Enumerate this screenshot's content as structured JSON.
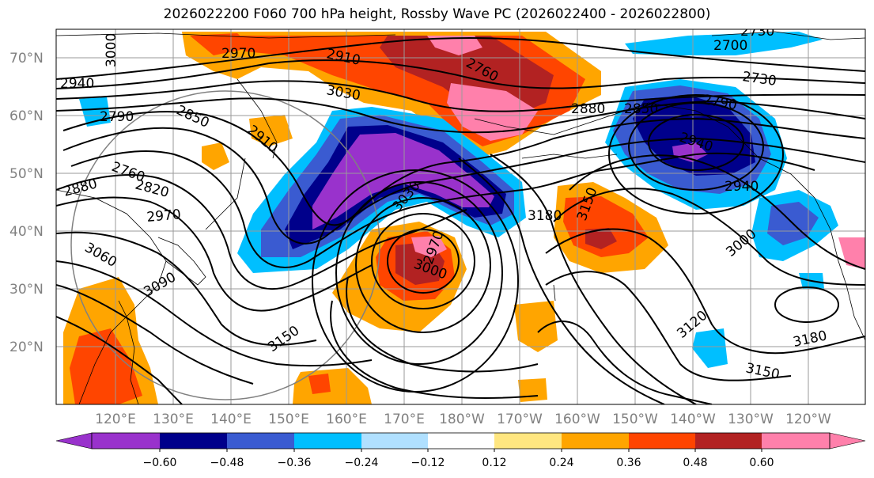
{
  "title": "2026022200 F060 700 hPa height, Rossby Wave PC (2026022400 - 2026022800)",
  "lat_labels": [
    "70°N",
    "60°N",
    "50°N",
    "40°N",
    "30°N",
    "20°N"
  ],
  "lat_values": [
    70,
    60,
    50,
    40,
    30,
    20
  ],
  "lon_labels": [
    "120°E",
    "130°E",
    "140°E",
    "150°E",
    "160°E",
    "170°E",
    "180°W",
    "170°W",
    "160°W",
    "150°W",
    "140°W",
    "130°W",
    "120°W"
  ],
  "contour_labels": [
    "3000",
    "2970",
    "2910",
    "2760",
    "2730",
    "2700",
    "2940",
    "3030",
    "2880",
    "2850",
    "2790",
    "2790",
    "2850",
    "2940",
    "2760",
    "2820",
    "2880",
    "2970",
    "3030",
    "2970",
    "3000",
    "3180",
    "3150",
    "2940",
    "3060",
    "3090",
    "3000",
    "3150",
    "3120",
    "3180",
    "3150",
    "2910",
    "2730"
  ],
  "colorbar": {
    "ticks": [
      "−0.60",
      "−0.48",
      "−0.36",
      "−0.24",
      "−0.12",
      "0.12",
      "0.24",
      "0.36",
      "0.48",
      "0.60"
    ],
    "colors": [
      "#9932cc",
      "#00008b",
      "#3a5bd1",
      "#00bfff",
      "#b0e0ff",
      "#ffffff",
      "#ffe680",
      "#ffa500",
      "#ff4500",
      "#b22222",
      "#ff80ab"
    ]
  },
  "colors": {
    "purple": "#9932cc",
    "navy": "#00008b",
    "royal": "#3a5bd1",
    "sky": "#00bfff",
    "yellow": "#ffe680",
    "orange": "#ffa500",
    "redorange": "#ff4500",
    "firebrick": "#b22222",
    "pink": "#ff80ab"
  }
}
